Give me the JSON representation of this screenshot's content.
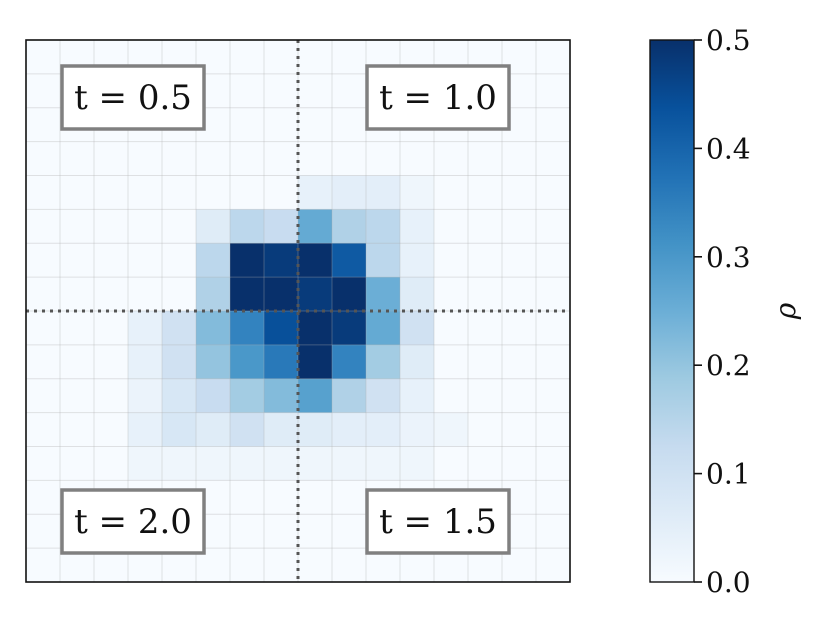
{
  "chart_data": {
    "type": "heatmap",
    "grid_size": 16,
    "rows": [
      [
        0,
        0,
        0,
        0,
        0,
        0,
        0,
        0,
        0,
        0,
        0,
        0,
        0,
        0,
        0,
        0
      ],
      [
        0,
        0,
        0,
        0,
        0,
        0,
        0,
        0,
        0,
        0,
        0,
        0,
        0,
        0,
        0,
        0
      ],
      [
        0,
        0,
        0,
        0,
        0,
        0,
        0,
        0,
        0,
        0,
        0,
        0,
        0,
        0,
        0,
        0
      ],
      [
        0,
        0,
        0,
        0,
        0,
        0,
        0,
        0,
        0,
        0,
        0,
        0,
        0,
        0,
        0,
        0
      ],
      [
        0,
        0,
        0,
        0,
        0,
        0,
        0,
        0,
        0.04,
        0.05,
        0.05,
        0.02,
        0,
        0,
        0,
        0
      ],
      [
        0,
        0,
        0,
        0,
        0,
        0.06,
        0.14,
        0.12,
        0.26,
        0.16,
        0.14,
        0.04,
        0,
        0,
        0,
        0
      ],
      [
        0,
        0,
        0,
        0,
        0,
        0.14,
        0.5,
        0.48,
        0.5,
        0.42,
        0.14,
        0.04,
        0,
        0,
        0,
        0
      ],
      [
        0,
        0,
        0,
        0,
        0,
        0.16,
        0.5,
        0.5,
        0.48,
        0.5,
        0.25,
        0.06,
        0,
        0,
        0,
        0
      ],
      [
        0,
        0,
        0,
        0.04,
        0.1,
        0.22,
        0.34,
        0.44,
        0.5,
        0.48,
        0.26,
        0.1,
        0,
        0,
        0,
        0
      ],
      [
        0,
        0,
        0,
        0.04,
        0.1,
        0.2,
        0.3,
        0.36,
        0.5,
        0.34,
        0.18,
        0.06,
        0,
        0,
        0,
        0
      ],
      [
        0,
        0,
        0,
        0.03,
        0.08,
        0.12,
        0.18,
        0.22,
        0.28,
        0.16,
        0.1,
        0.04,
        0,
        0,
        0,
        0
      ],
      [
        0,
        0,
        0,
        0.04,
        0.08,
        0.06,
        0.1,
        0.06,
        0.06,
        0.05,
        0.05,
        0.03,
        0.02,
        0,
        0,
        0
      ],
      [
        0,
        0,
        0,
        0.02,
        0.02,
        0.02,
        0.02,
        0.02,
        0.02,
        0.02,
        0.02,
        0.02,
        0,
        0,
        0,
        0
      ],
      [
        0,
        0,
        0,
        0,
        0,
        0,
        0,
        0,
        0,
        0,
        0,
        0,
        0,
        0,
        0,
        0
      ],
      [
        0,
        0,
        0,
        0,
        0,
        0,
        0,
        0,
        0,
        0,
        0,
        0,
        0,
        0,
        0,
        0
      ],
      [
        0,
        0,
        0,
        0,
        0,
        0,
        0,
        0,
        0,
        0,
        0,
        0,
        0,
        0,
        0,
        0
      ]
    ],
    "vmin": 0.0,
    "vmax": 0.5,
    "colormap": [
      "#f7fbff",
      "#deebf7",
      "#c6dbef",
      "#9ecae1",
      "#6baed6",
      "#4292c6",
      "#2171b5",
      "#08519c",
      "#08306b"
    ],
    "grid": true,
    "crosshair": {
      "style": "dotted",
      "color": "#555555"
    },
    "annotations": [
      {
        "text": "t = 0.5",
        "position": "top-left"
      },
      {
        "text": "t = 1.0",
        "position": "top-right"
      },
      {
        "text": "t = 2.0",
        "position": "bottom-left"
      },
      {
        "text": "t = 1.5",
        "position": "bottom-right"
      }
    ],
    "colorbar": {
      "label": "ρ",
      "ticks": [
        0.0,
        0.1,
        0.2,
        0.3,
        0.4,
        0.5
      ],
      "tick_labels": [
        "0.0",
        "0.1",
        "0.2",
        "0.3",
        "0.4",
        "0.5"
      ],
      "position": "right"
    }
  }
}
